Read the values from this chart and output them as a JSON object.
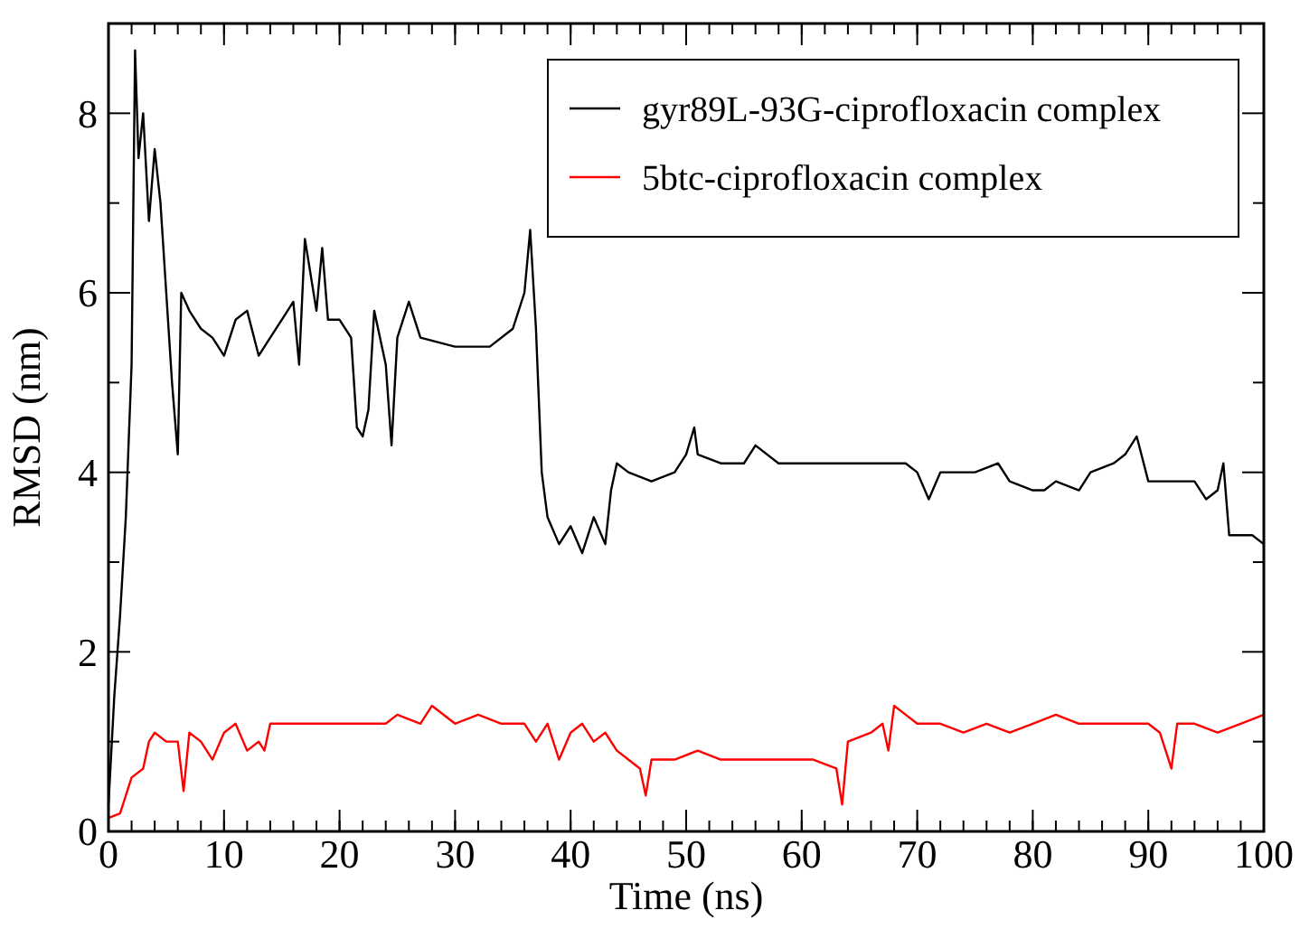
{
  "chart_data": {
    "type": "line",
    "xlabel": "Time (ns)",
    "ylabel": "RMSD (nm)",
    "xlim": [
      0,
      100
    ],
    "ylim": [
      0,
      9
    ],
    "xticks": [
      0,
      10,
      20,
      30,
      40,
      50,
      60,
      70,
      80,
      90,
      100
    ],
    "yticks": [
      0,
      {
        "value": 1,
        "label": null
      },
      2,
      {
        "value": 3,
        "label": null
      },
      4,
      {
        "value": 5,
        "label": null
      },
      6,
      {
        "value": 7,
        "label": null
      },
      8
    ],
    "grid": false,
    "legend": "top right",
    "line_style": "solid",
    "marker": "none",
    "series": [
      {
        "name": "gyr89L-93G-ciprofloxacin complex",
        "color": "#000000",
        "x": [
          0,
          0.5,
          1,
          1.5,
          2,
          2.3,
          2.6,
          3,
          3.5,
          4,
          4.5,
          5,
          5.5,
          6,
          6.3,
          7,
          8,
          9,
          10,
          11,
          12,
          13,
          14,
          15,
          16,
          16.5,
          17,
          18,
          18.5,
          19,
          20,
          21,
          21.5,
          22,
          22.5,
          23,
          24,
          24.5,
          25,
          26,
          27,
          30,
          33,
          35,
          36,
          36.5,
          37,
          37.5,
          38,
          39,
          40,
          41,
          42,
          43,
          43.5,
          44,
          45,
          47,
          49,
          50,
          50.7,
          51,
          53,
          55,
          56,
          58,
          60,
          65,
          69,
          70,
          71,
          72,
          75,
          77,
          78,
          80,
          81,
          82,
          84,
          85,
          87,
          88,
          89,
          90,
          92,
          94,
          95,
          96,
          96.5,
          97,
          99,
          100
        ],
        "values": [
          0.3,
          1.5,
          2.4,
          3.5,
          5.2,
          8.7,
          7.5,
          8.0,
          6.8,
          7.6,
          7.0,
          6.0,
          5.0,
          4.2,
          6.0,
          5.8,
          5.6,
          5.5,
          5.3,
          5.7,
          5.8,
          5.3,
          5.5,
          5.7,
          5.9,
          5.2,
          6.6,
          5.8,
          6.5,
          5.7,
          5.7,
          5.5,
          4.5,
          4.4,
          4.7,
          5.8,
          5.2,
          4.3,
          5.5,
          5.9,
          5.5,
          5.4,
          5.4,
          5.6,
          6.0,
          6.7,
          5.6,
          4.0,
          3.5,
          3.2,
          3.4,
          3.1,
          3.5,
          3.2,
          3.8,
          4.1,
          4.0,
          3.9,
          4.0,
          4.2,
          4.5,
          4.2,
          4.1,
          4.1,
          4.3,
          4.1,
          4.1,
          4.1,
          4.1,
          4.0,
          3.7,
          4.0,
          4.0,
          4.1,
          3.9,
          3.8,
          3.8,
          3.9,
          3.8,
          4.0,
          4.1,
          4.2,
          4.4,
          3.9,
          3.9,
          3.9,
          3.7,
          3.8,
          4.1,
          3.3,
          3.3,
          3.2
        ]
      },
      {
        "name": "5btc-ciprofloxacin complex",
        "color": "#ff0000",
        "x": [
          0,
          1,
          1.5,
          2,
          3,
          3.5,
          4,
          5,
          6,
          6.5,
          7,
          8,
          9,
          10,
          11,
          12,
          13,
          13.5,
          14,
          16,
          18,
          20,
          22,
          24,
          25,
          27,
          28,
          30,
          32,
          34,
          36,
          37,
          38,
          39,
          40,
          41,
          42,
          43,
          44,
          45,
          46,
          46.5,
          47,
          49,
          51,
          53,
          55,
          57,
          59,
          61,
          63,
          63.5,
          64,
          66,
          67,
          67.5,
          68,
          69,
          70,
          72,
          74,
          76,
          78,
          80,
          82,
          84,
          86,
          88,
          90,
          91,
          92,
          92.5,
          94,
          96,
          98,
          100
        ],
        "values": [
          0.15,
          0.2,
          0.4,
          0.6,
          0.7,
          1.0,
          1.1,
          1.0,
          1.0,
          0.45,
          1.1,
          1.0,
          0.8,
          1.1,
          1.2,
          0.9,
          1.0,
          0.9,
          1.2,
          1.2,
          1.2,
          1.2,
          1.2,
          1.2,
          1.3,
          1.2,
          1.4,
          1.2,
          1.3,
          1.2,
          1.2,
          1.0,
          1.2,
          0.8,
          1.1,
          1.2,
          1.0,
          1.1,
          0.9,
          0.8,
          0.7,
          0.4,
          0.8,
          0.8,
          0.9,
          0.8,
          0.8,
          0.8,
          0.8,
          0.8,
          0.7,
          0.3,
          1.0,
          1.1,
          1.2,
          0.9,
          1.4,
          1.3,
          1.2,
          1.2,
          1.1,
          1.2,
          1.1,
          1.2,
          1.3,
          1.2,
          1.2,
          1.2,
          1.2,
          1.1,
          0.7,
          1.2,
          1.2,
          1.1,
          1.2,
          1.3
        ]
      }
    ]
  }
}
